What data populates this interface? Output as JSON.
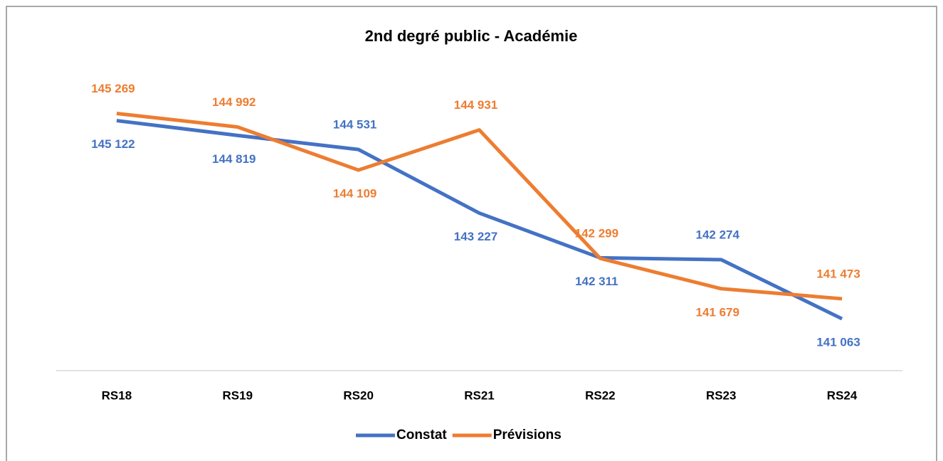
{
  "chart_data": {
    "type": "line",
    "title": "2nd degré public - Académie",
    "categories": [
      "RS18",
      "RS19",
      "RS20",
      "RS21",
      "RS22",
      "RS23",
      "RS24"
    ],
    "series": [
      {
        "name": "Constat",
        "color": "#4472c4",
        "values": [
          145122,
          144819,
          144531,
          143227,
          142311,
          142274,
          141063
        ],
        "value_labels": [
          "145 122",
          "144 819",
          "144 531",
          "143 227",
          "142 311",
          "142 274",
          "141 063"
        ]
      },
      {
        "name": "Prévisions",
        "color": "#ed7d31",
        "values": [
          145269,
          144992,
          144109,
          144931,
          142299,
          141679,
          141473
        ],
        "value_labels": [
          "145 269",
          "144 992",
          "144 109",
          "144 931",
          "142 299",
          "141 679",
          "141 473"
        ]
      }
    ],
    "ylim": [
      140000,
      146500
    ],
    "legend": "bottom"
  }
}
